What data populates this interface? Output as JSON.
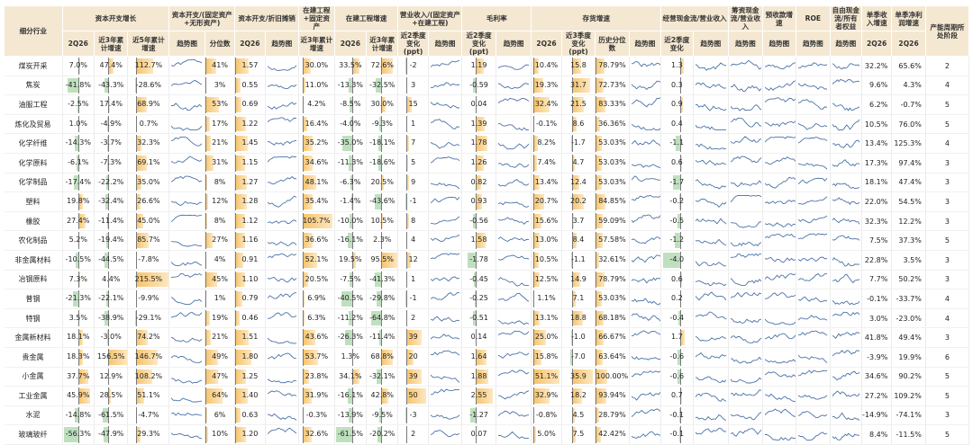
{
  "header": {
    "industry": "细分行业",
    "groups": [
      {
        "key": "capex",
        "label": "资本开支增长"
      },
      {
        "key": "capex_assets",
        "label": "资本开支/(固定资产+无形资产)"
      },
      {
        "key": "capex_dep",
        "label": "资本开支/折旧摊销"
      },
      {
        "key": "cip_ratio",
        "label": "在建工程+固定资产"
      },
      {
        "key": "cip_growth",
        "label": "在建工程增速"
      },
      {
        "key": "rev_ratio",
        "label": "营业收入/(固定资产+在建工程)"
      },
      {
        "key": "gm",
        "label": "毛利率"
      },
      {
        "key": "inv",
        "label": "存货增速"
      },
      {
        "key": "ocf",
        "label": "经营现金流/营业收入"
      },
      {
        "key": "fcf_rev",
        "label": "筹资现金流/营业收入"
      },
      {
        "key": "prepay",
        "label": "预收款增速"
      },
      {
        "key": "roe",
        "label": "ROE"
      },
      {
        "key": "fcf_eq",
        "label": "自由现金流/所有者权益"
      },
      {
        "key": "rev_q",
        "label": "单季收入增速"
      },
      {
        "key": "np_q",
        "label": "单季净利润增速"
      },
      {
        "key": "stage",
        "label": "产能周期所处阶段"
      }
    ],
    "sub": {
      "capex": [
        "2Q26",
        "近3年累计增速",
        "近5年累计增速"
      ],
      "capex_assets": [
        "趋势图",
        "分位数"
      ],
      "capex_dep": [
        "2Q26",
        "趋势图"
      ],
      "cip_ratio": [
        "近3年累计增速"
      ],
      "cip_growth": [
        "2Q26",
        "近3年累计增速"
      ],
      "rev_ratio": [
        "近2季度变化(ppt)",
        "趋势图"
      ],
      "gm": [
        "近2季度变化(ppt)",
        "趋势图"
      ],
      "inv": [
        "2Q26",
        "近3季度变化(ppt)",
        "历史分位数",
        "趋势图"
      ],
      "ocf": [
        "近2季度变化",
        "趋势图"
      ],
      "fcf_rev": [
        "趋势图"
      ],
      "prepay": [
        "趋势图"
      ],
      "roe": [
        "趋势图"
      ],
      "fcf_eq": [
        "趋势图"
      ],
      "rev_q": [
        "2Q26"
      ],
      "np_q": [
        "2Q26"
      ]
    }
  },
  "rows": [
    {
      "name": "煤炭开采",
      "capex": "7.0%",
      "c3": "47.4%",
      "c5": "112.7%",
      "q": "41%",
      "cd": "1.57",
      "cip3": "30.0%",
      "cg": "33.5%",
      "cg3": "72.6%",
      "rv": "-2",
      "gm": "1.19",
      "iv": "10.4%",
      "iv3": "15.8",
      "ip": "78.79%",
      "ocf": "1.3",
      "rq": "32.2%",
      "nq": "65.6%",
      "st": "2"
    },
    {
      "name": "焦炭",
      "capex": "-41.8%",
      "c3": "-43.3%",
      "c5": "-28.6%",
      "q": "3%",
      "cd": "0.55",
      "cip3": "11.0%",
      "cg": "-13.3%",
      "cg3": "-32.5%",
      "rv": "3",
      "gm": "-0.59",
      "iv": "19.3%",
      "iv3": "31.7",
      "ip": "72.73%",
      "ocf": "0.3",
      "rq": "9.6%",
      "nq": "4.3%",
      "st": "4"
    },
    {
      "name": "油服工程",
      "capex": "-2.5%",
      "c3": "17.4%",
      "c5": "68.9%",
      "q": "53%",
      "cd": "0.69",
      "cip3": "4.2%",
      "cg": "-8.5%",
      "cg3": "30.0%",
      "rv": "15",
      "gm": "0.04",
      "iv": "32.4%",
      "iv3": "21.5",
      "ip": "83.33%",
      "ocf": "0.9",
      "rq": "6.2%",
      "nq": "-0.7%",
      "st": "5"
    },
    {
      "name": "炼化及贸易",
      "capex": "1.0%",
      "c3": "-4.9%",
      "c5": "0.7%",
      "q": "17%",
      "cd": "1.22",
      "cip3": "16.4%",
      "cg": "-4.0%",
      "cg3": "-9.3%",
      "rv": "1",
      "gm": "1.39",
      "iv": "-0.1%",
      "iv3": "8.6",
      "ip": "36.36%",
      "ocf": "0.4",
      "rq": "10.5%",
      "nq": "76.0%",
      "st": "5"
    },
    {
      "name": "化学纤维",
      "capex": "-14.3%",
      "c3": "-3.7%",
      "c5": "32.3%",
      "q": "21%",
      "cd": "1.45",
      "cip3": "35.2%",
      "cg": "-35.0%",
      "cg3": "-18.1%",
      "rv": "7",
      "gm": "1.78",
      "iv": "8.2%",
      "iv3": "-1.7",
      "ip": "53.03%",
      "ocf": "-1.1",
      "rq": "13.4%",
      "nq": "125.3%",
      "st": "4"
    },
    {
      "name": "化学原料",
      "capex": "-6.1%",
      "c3": "-7.3%",
      "c5": "69.1%",
      "q": "31%",
      "cd": "1.15",
      "cip3": "34.6%",
      "cg": "-11.3%",
      "cg3": "-18.6%",
      "rv": "5",
      "gm": "1.26",
      "iv": "7.4%",
      "iv3": "4.7",
      "ip": "53.03%",
      "ocf": "0.6",
      "rq": "17.3%",
      "nq": "97.4%",
      "st": "3"
    },
    {
      "name": "化学制品",
      "capex": "-17.4%",
      "c3": "-22.2%",
      "c5": "35.0%",
      "q": "8%",
      "cd": "1.27",
      "cip3": "48.1%",
      "cg": "-6.3%",
      "cg3": "20.5%",
      "rv": "9",
      "gm": "0.82",
      "iv": "13.4%",
      "iv3": "12.4",
      "ip": "53.03%",
      "ocf": "-1.7",
      "rq": "18.1%",
      "nq": "47.4%",
      "st": "3"
    },
    {
      "name": "塑料",
      "capex": "19.8%",
      "c3": "-32.4%",
      "c5": "26.6%",
      "q": "12%",
      "cd": "1.28",
      "cip3": "35.4%",
      "cg": "-1.4%",
      "cg3": "-43.6%",
      "rv": "-1",
      "gm": "0.93",
      "iv": "20.7%",
      "iv3": "20.2",
      "ip": "84.85%",
      "ocf": "-0.2",
      "rq": "22.0%",
      "nq": "54.5%",
      "st": "3"
    },
    {
      "name": "橡胶",
      "capex": "27.4%",
      "c3": "-11.4%",
      "c5": "45.0%",
      "q": "8%",
      "cd": "1.12",
      "cip3": "105.7%",
      "cg": "-10.0%",
      "cg3": "10.5%",
      "rv": "8",
      "gm": "-0.56",
      "iv": "15.6%",
      "iv3": "3.7",
      "ip": "59.09%",
      "ocf": "-0.5",
      "rq": "32.3%",
      "nq": "12.2%",
      "st": "3"
    },
    {
      "name": "农化制品",
      "capex": "5.2%",
      "c3": "-19.4%",
      "c5": "85.7%",
      "q": "27%",
      "cd": "1.16",
      "cip3": "36.6%",
      "cg": "-16.1%",
      "cg3": "2.3%",
      "rv": "4",
      "gm": "1.58",
      "iv": "13.0%",
      "iv3": "8.4",
      "ip": "57.58%",
      "ocf": "-1.2",
      "rq": "7.5%",
      "nq": "37.3%",
      "st": "5"
    },
    {
      "name": "非金属材料",
      "capex": "-10.5%",
      "c3": "-44.5%",
      "c5": "-7.8%",
      "q": "4%",
      "cd": "0.91",
      "cip3": "52.1%",
      "cg": "19.5%",
      "cg3": "95.5%",
      "rv": "12",
      "gm": "-1.78",
      "iv": "10.5%",
      "iv3": "-1.1",
      "ip": "32.61%",
      "ocf": "-4.0",
      "rq": "22.8%",
      "nq": "3.5%",
      "st": "3"
    },
    {
      "name": "冶钢原料",
      "capex": "7.3%",
      "c3": "4.4%",
      "c5": "215.5%",
      "q": "45%",
      "cd": "1.10",
      "cip3": "20.5%",
      "cg": "-7.5%",
      "cg3": "-41.3%",
      "rv": "1",
      "gm": "-0.45",
      "iv": "12.5%",
      "iv3": "14.9",
      "ip": "78.79%",
      "ocf": "0.6",
      "rq": "7.7%",
      "nq": "50.2%",
      "st": "3"
    },
    {
      "name": "普钢",
      "capex": "-21.3%",
      "c3": "-22.1%",
      "c5": "-9.9%",
      "q": "1%",
      "cd": "0.79",
      "cip3": "6.9%",
      "cg": "-40.5%",
      "cg3": "-29.8%",
      "rv": "-1",
      "gm": "-0.25",
      "iv": "1.1%",
      "iv3": "7.1",
      "ip": "53.03%",
      "ocf": "0.2",
      "rq": "-0.1%",
      "nq": "-33.7%",
      "st": "4"
    },
    {
      "name": "特钢",
      "capex": "3.5%",
      "c3": "-38.9%",
      "c5": "-29.1%",
      "q": "19%",
      "cd": "0.46",
      "cip3": "6.3%",
      "cg": "-11.2%",
      "cg3": "-64.8%",
      "rv": "2",
      "gm": "-0.51",
      "iv": "13.1%",
      "iv3": "18.8",
      "ip": "68.18%",
      "ocf": "-0.4",
      "rq": "3.0%",
      "nq": "-23.0%",
      "st": "4"
    },
    {
      "name": "金属新材料",
      "capex": "18.1%",
      "c3": "-3.0%",
      "c5": "74.2%",
      "q": "21%",
      "cd": "1.51",
      "cip3": "43.6%",
      "cg": "-26.3%",
      "cg3": "-11.4%",
      "rv": "39",
      "gm": "0.14",
      "iv": "25.0%",
      "iv3": "-1.0",
      "ip": "66.67%",
      "ocf": "1.7",
      "rq": "41.8%",
      "nq": "49.4%",
      "st": "3"
    },
    {
      "name": "贵金属",
      "capex": "18.3%",
      "c3": "156.5%",
      "c5": "146.7%",
      "q": "49%",
      "cd": "1.80",
      "cip3": "53.7%",
      "cg": "1.3%",
      "cg3": "68.8%",
      "rv": "20",
      "gm": "1.64",
      "iv": "15.8%",
      "iv3": "-7.0",
      "ip": "63.64%",
      "ocf": "-0.6",
      "rq": "-3.9%",
      "nq": "19.9%",
      "st": "6"
    },
    {
      "name": "小金属",
      "capex": "37.7%",
      "c3": "12.9%",
      "c5": "108.2%",
      "q": "47%",
      "cd": "1.25",
      "cip3": "23.8%",
      "cg": "34.1%",
      "cg3": "-32.1%",
      "rv": "39",
      "gm": "1.88",
      "iv": "51.1%",
      "iv3": "35.9",
      "ip": "100.00%",
      "ocf": "-0.6",
      "rq": "34.6%",
      "nq": "90.2%",
      "st": "5"
    },
    {
      "name": "工业金属",
      "capex": "45.9%",
      "c3": "28.5%",
      "c5": "51.1%",
      "q": "64%",
      "cd": "1.40",
      "cip3": "31.9%",
      "cg": "-16.1%",
      "cg3": "42.8%",
      "rv": "50",
      "gm": "2.55",
      "iv": "32.9%",
      "iv3": "18.2",
      "ip": "93.94%",
      "ocf": "0.7",
      "rq": "27.2%",
      "nq": "109.2%",
      "st": "5"
    },
    {
      "name": "水泥",
      "capex": "-14.8%",
      "c3": "-61.5%",
      "c5": "-4.7%",
      "q": "6%",
      "cd": "0.63",
      "cip3": "-0.3%",
      "cg": "-13.9%",
      "cg3": "-9.5%",
      "rv": "-3",
      "gm": "-1.27",
      "iv": "-0.8%",
      "iv3": "4.5",
      "ip": "28.79%",
      "ocf": "-0.1",
      "rq": "-14.9%",
      "nq": "-74.1%",
      "st": "3"
    },
    {
      "name": "玻璃玻纤",
      "capex": "-56.3%",
      "c3": "-47.9%",
      "c5": "29.3%",
      "q": "10%",
      "cd": "1.20",
      "cip3": "32.6%",
      "cg": "-61.5%",
      "cg3": "-20.2%",
      "rv": "2",
      "gm": "0.07",
      "iv": "5.0%",
      "iv3": "7.5",
      "ip": "42.42%",
      "ocf": "-0.1",
      "rq": "8.4%",
      "nq": "-11.5%",
      "st": "5"
    }
  ]
}
